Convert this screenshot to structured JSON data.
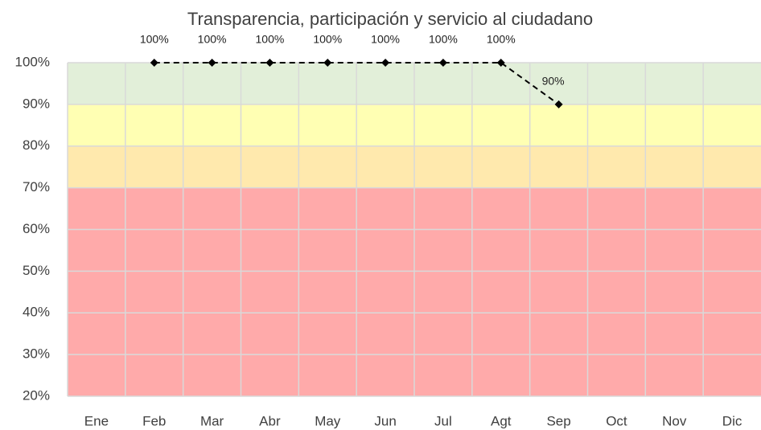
{
  "chart_data": {
    "type": "line",
    "title": "Transparencia, participación y servicio al ciudadano",
    "categories": [
      "Ene",
      "Feb",
      "Mar",
      "Abr",
      "May",
      "Jun",
      "Jul",
      "Agt",
      "Sep",
      "Oct",
      "Nov",
      "Dic"
    ],
    "series": [
      {
        "name": "Transparencia, participación y servicio al ciudadano",
        "color": "#000000",
        "values": [
          null,
          100,
          100,
          100,
          100,
          100,
          100,
          100,
          90,
          null,
          null,
          null
        ],
        "value_labels": [
          null,
          "100%",
          "100%",
          "100%",
          "100%",
          "100%",
          "100%",
          "100%",
          "90%",
          null,
          null,
          null
        ]
      }
    ],
    "bands": [
      {
        "from": 90,
        "to": 100,
        "color": "#e2efd9"
      },
      {
        "from": 80,
        "to": 90,
        "color": "#ffffb3"
      },
      {
        "from": 70,
        "to": 80,
        "color": "#ffe9ad"
      },
      {
        "from": 20,
        "to": 70,
        "color": "#ffaaaa"
      }
    ],
    "ylim": [
      20,
      100
    ],
    "yticks": [
      {
        "value": 20,
        "label": "20%"
      },
      {
        "value": 30,
        "label": "30%"
      },
      {
        "value": 40,
        "label": "40%"
      },
      {
        "value": 50,
        "label": "50%"
      },
      {
        "value": 60,
        "label": "60%"
      },
      {
        "value": 70,
        "label": "70%"
      },
      {
        "value": 80,
        "label": "80%"
      },
      {
        "value": 90,
        "label": "90%"
      },
      {
        "value": 100,
        "label": "100%"
      }
    ],
    "grid": true
  }
}
